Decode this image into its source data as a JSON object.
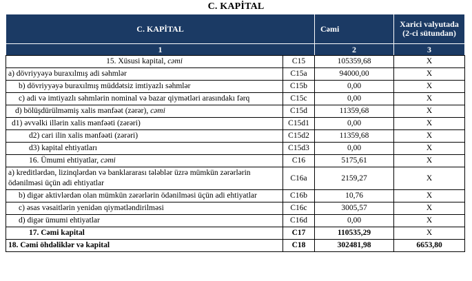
{
  "title": "C. KAPİTAL",
  "colors": {
    "header_bg": "#1B3A64",
    "header_text": "#FFFFFF",
    "border": "#000000",
    "body_text": "#000000"
  },
  "table": {
    "header": {
      "label": "C. KAPİTAL",
      "total": "Cəmi",
      "foreign": "Xarici valyutada (2-ci sütundan)"
    },
    "number_row": [
      "1",
      "2",
      "3"
    ],
    "rows": [
      {
        "label": "15. Xüsusi kapital, ",
        "em": "cəmi",
        "code": "C15",
        "total": "105359,68",
        "foreign": "X",
        "indent": "center",
        "bold": false
      },
      {
        "label": "a) dövriyyəyə buraxılmış adi səhmlər",
        "em": "",
        "code": "C15a",
        "total": "94000,00",
        "foreign": "X",
        "indent": "flush",
        "bold": false
      },
      {
        "label": "b) dövriyyəyə buraxılmış müddətsiz imtiyazlı səhmlər",
        "em": "",
        "code": "C15b",
        "total": "0,00",
        "foreign": "X",
        "indent": "small",
        "bold": false
      },
      {
        "label": "c) adi və imtiyazlı səhmlərin nominal və bazar qiymətləri arasındakı fərq",
        "em": "",
        "code": "C15c",
        "total": "0,00",
        "foreign": "X",
        "indent": "hang",
        "bold": false
      },
      {
        "label": "d) bölüşdürülməmiş xalis mənfəət (zərər), ",
        "em": "cəmi",
        "code": "C15d",
        "total": "11359,68",
        "foreign": "X",
        "indent": "d",
        "bold": false
      },
      {
        "label": "d1) əvvəlki illərin xalis mənfəəti (zərəri)",
        "em": "",
        "code": "C15d1",
        "total": "0,00",
        "foreign": "X",
        "indent": "d1",
        "bold": false
      },
      {
        "label": "d2) cari ilin xalis mənfəəti (zərəri)",
        "em": "",
        "code": "C15d2",
        "total": "11359,68",
        "foreign": "X",
        "indent": "deep",
        "bold": false
      },
      {
        "label": "d3) kapital ehtiyatları",
        "em": "",
        "code": "C15d3",
        "total": "0,00",
        "foreign": "X",
        "indent": "deep",
        "bold": false
      },
      {
        "label": "16. Ümumi ehtiyatlar, ",
        "em": "cəmi",
        "code": "C16",
        "total": "5175,61",
        "foreign": "X",
        "indent": "deep",
        "bold": false
      },
      {
        "label": "a) kreditlərdən, lizinqlərdən və banklararası tələblər üzrə mümkün zərərlərin ödənilməsi üçün adi ehtiyatlar",
        "em": "",
        "code": "C16a",
        "total": "2159,27",
        "foreign": "X",
        "indent": "flush",
        "bold": false
      },
      {
        "label": "b) digər aktivlərdən olan mümkün zərərlərin ödənilməsi üçün adi ehtiyatlar",
        "em": "",
        "code": "C16b",
        "total": "10,76",
        "foreign": "X",
        "indent": "hang",
        "bold": false
      },
      {
        "label": "c) əsas vəsaitlərin yenidən qiymətləndirilməsi",
        "em": "",
        "code": "C16c",
        "total": "3005,57",
        "foreign": "X",
        "indent": "small",
        "bold": false
      },
      {
        "label": "d) digər ümumi ehtiyatlar",
        "em": "",
        "code": "C16d",
        "total": "0,00",
        "foreign": "X",
        "indent": "small",
        "bold": false
      },
      {
        "label": "17. Cəmi kapital",
        "em": "",
        "code": "C17",
        "total": "110535,29",
        "foreign": "X",
        "indent": "deep",
        "bold": true
      },
      {
        "label": "18. Cəmi öhdəliklər və kapital",
        "em": "",
        "code": "C18",
        "total": "302481,98",
        "foreign": "6653,80",
        "indent": "flush",
        "bold": true
      }
    ]
  }
}
